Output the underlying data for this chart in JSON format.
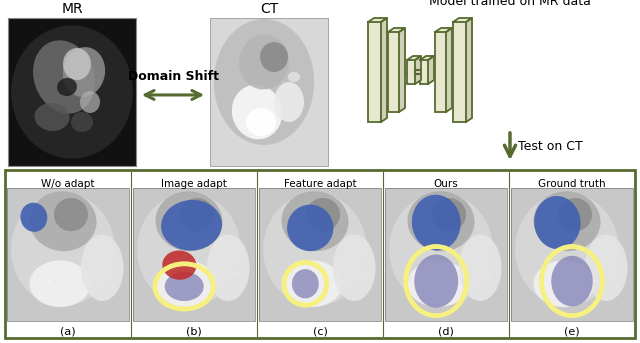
{
  "fig_width": 6.4,
  "fig_height": 3.43,
  "dpi": 100,
  "bg_color": "#ffffff",
  "top_section": {
    "mr_label": "MR",
    "ct_label": "CT",
    "model_label": "Model trained on MR data",
    "domain_shift_label": "Domain Shift",
    "test_ct_label": "Test on CT"
  },
  "bottom_section": {
    "border_color": "#556b2f",
    "labels": [
      "W/o adapt",
      "Image adapt",
      "Feature adapt",
      "Ours",
      "Ground truth"
    ],
    "sublabels": [
      "(a)",
      "(b)",
      "(c)",
      "(d)",
      "(e)"
    ]
  },
  "colors": {
    "dark_green": "#556b2f",
    "blue_seg": "#4060b0",
    "yellow_seg": "#f5f080",
    "purple_seg": "#8888bb",
    "red_seg": "#c03030",
    "box_fill": "#e8e8d0",
    "box_border": "#556b2f"
  }
}
